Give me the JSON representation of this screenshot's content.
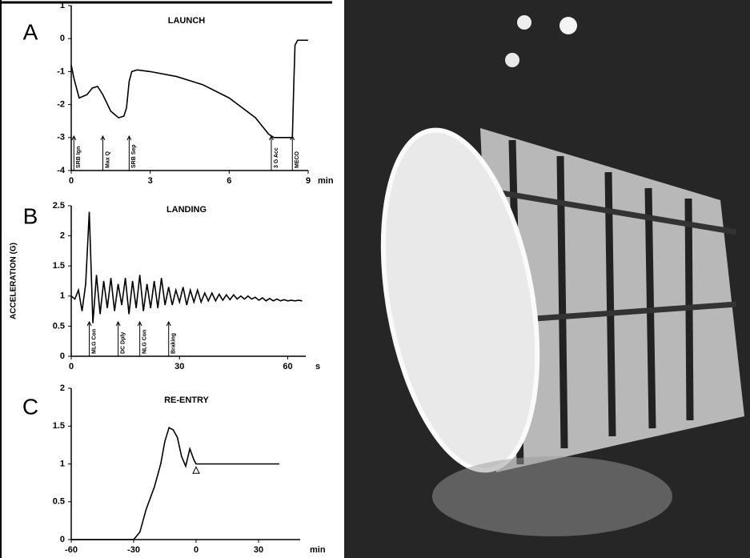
{
  "chart_data": [
    {
      "type": "line",
      "panel": "A",
      "title": "LAUNCH",
      "x_label": "min",
      "x": [
        0,
        0.1,
        0.3,
        0.6,
        0.8,
        1.0,
        1.2,
        1.5,
        1.8,
        2.0,
        2.1,
        2.2,
        2.3,
        2.5,
        3,
        4,
        5,
        6,
        7,
        7.5,
        7.7,
        8.2,
        8.4,
        8.45,
        8.5,
        8.6,
        9
      ],
      "values": [
        -0.8,
        -1.2,
        -1.8,
        -1.7,
        -1.5,
        -1.45,
        -1.7,
        -2.2,
        -2.4,
        -2.35,
        -2.1,
        -1.3,
        -1.0,
        -0.95,
        -1.0,
        -1.15,
        -1.4,
        -1.8,
        -2.4,
        -2.9,
        -3.0,
        -3.0,
        -3.0,
        -1.5,
        -0.2,
        -0.05,
        -0.05
      ],
      "color": "#000000",
      "xlim": [
        0,
        9
      ],
      "xticks": [
        0,
        3,
        6,
        9
      ],
      "ylim": [
        -4,
        1
      ],
      "yticks": [
        -4,
        -3,
        -2,
        -1,
        0,
        1
      ],
      "events": [
        {
          "label": "SRB Ign",
          "x": 0.1
        },
        {
          "label": "Max Q",
          "x": 1.2
        },
        {
          "label": "SRB Sep",
          "x": 2.2
        },
        {
          "label": "3 G Acc",
          "x": 7.6
        },
        {
          "label": "MECO",
          "x": 8.4
        }
      ]
    },
    {
      "type": "line",
      "panel": "B",
      "title": "LANDING",
      "x_label": "s",
      "y_label": "ACCELERATION (G)",
      "x": [
        0,
        1,
        2,
        3,
        4,
        5,
        6,
        7,
        8,
        9,
        10,
        11,
        12,
        13,
        14,
        15,
        16,
        17,
        18,
        19,
        20,
        21,
        22,
        23,
        24,
        25,
        26,
        27,
        28,
        29,
        30,
        31,
        32,
        33,
        34,
        35,
        36,
        37,
        38,
        39,
        40,
        41,
        42,
        43,
        44,
        45,
        46,
        47,
        48,
        49,
        50,
        51,
        52,
        53,
        54,
        55,
        56,
        57,
        58,
        59,
        60,
        61,
        62,
        63,
        64
      ],
      "values": [
        1,
        0.95,
        1.1,
        0.75,
        1.2,
        2.4,
        0.55,
        1.35,
        0.7,
        1.25,
        0.8,
        1.3,
        0.75,
        1.2,
        0.85,
        1.3,
        0.7,
        1.25,
        0.8,
        1.35,
        0.75,
        1.2,
        0.8,
        1.25,
        0.8,
        1.3,
        0.85,
        1.15,
        0.85,
        1.1,
        0.9,
        1.15,
        0.85,
        1.1,
        0.9,
        1.1,
        0.9,
        1.05,
        0.92,
        1.05,
        0.92,
        1.03,
        0.93,
        1.02,
        0.94,
        1.02,
        0.95,
        1.0,
        0.95,
        1.0,
        0.95,
        0.98,
        0.93,
        0.97,
        0.92,
        0.96,
        0.92,
        0.95,
        0.92,
        0.94,
        0.92,
        0.93,
        0.92,
        0.93,
        0.92
      ],
      "color": "#000000",
      "xlim": [
        0,
        65
      ],
      "xticks": [
        0,
        30,
        60
      ],
      "ylim": [
        0,
        2.5
      ],
      "yticks": [
        0,
        0.5,
        1,
        1.5,
        2,
        2.5
      ],
      "events": [
        {
          "label": "MLG Con",
          "x": 5
        },
        {
          "label": "DC Dply",
          "x": 13
        },
        {
          "label": "NLG Con",
          "x": 19
        },
        {
          "label": "Braking",
          "x": 27
        }
      ]
    },
    {
      "type": "line",
      "panel": "C",
      "title": "RE-ENTRY",
      "x_label": "min",
      "x": [
        -60,
        -30,
        -27,
        -24,
        -20,
        -17,
        -15,
        -13,
        -11,
        -9,
        -7,
        -5,
        -3,
        -1,
        0,
        40
      ],
      "values": [
        0,
        0,
        0.1,
        0.4,
        0.7,
        1.0,
        1.3,
        1.48,
        1.45,
        1.35,
        1.1,
        0.97,
        1.2,
        1.05,
        1,
        1
      ],
      "color": "#000000",
      "xlim": [
        -60,
        50
      ],
      "xticks": [
        -60,
        -30,
        0,
        30
      ],
      "ylim": [
        0,
        2
      ],
      "yticks": [
        0,
        0.5,
        1,
        1.5,
        2
      ]
    }
  ]
}
